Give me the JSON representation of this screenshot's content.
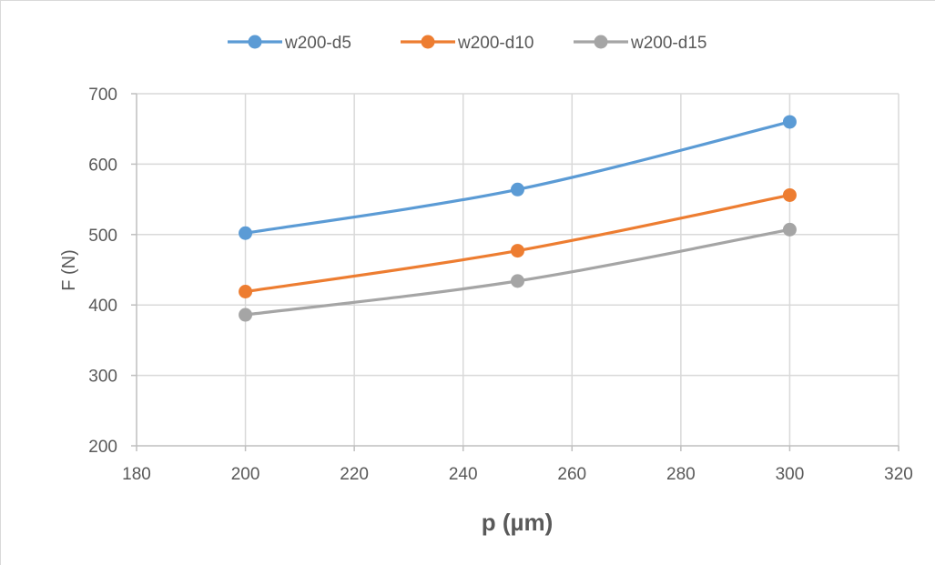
{
  "chart_data": {
    "type": "line",
    "title": "",
    "xlabel": "p (µm)",
    "ylabel": "F (N)",
    "xlim": [
      180,
      320
    ],
    "ylim": [
      200,
      700
    ],
    "xticks": [
      180,
      200,
      220,
      240,
      260,
      280,
      300,
      320
    ],
    "yticks": [
      200,
      300,
      400,
      500,
      600,
      700
    ],
    "grid": true,
    "legend_position": "top",
    "smooth": true,
    "series": [
      {
        "name": "w200-d5",
        "color": "#5B9BD5",
        "x": [
          200,
          250,
          300
        ],
        "y": [
          502,
          564,
          660
        ]
      },
      {
        "name": "w200-d10",
        "color": "#ED7D31",
        "x": [
          200,
          250,
          300
        ],
        "y": [
          419,
          477,
          556
        ]
      },
      {
        "name": "w200-d15",
        "color": "#A5A5A5",
        "x": [
          200,
          250,
          300
        ],
        "y": [
          386,
          434,
          507
        ]
      }
    ]
  }
}
